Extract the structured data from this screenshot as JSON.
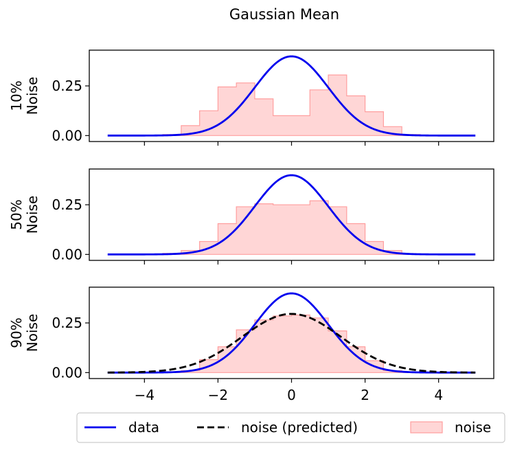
{
  "chart_data": {
    "type": "line",
    "title": "Gaussian Mean",
    "xlim": [
      -5.5,
      5.5
    ],
    "ylim": [
      -0.03,
      0.43
    ],
    "x_ticks": [
      -4,
      -2,
      0,
      2,
      4
    ],
    "x_tick_labels": [
      "−4",
      "−2",
      "0",
      "2",
      "4"
    ],
    "y_ticks": [
      0.0,
      0.25
    ],
    "y_tick_labels": [
      "0.00",
      "0.25"
    ],
    "bin_edges": [
      -3.5,
      -3.0,
      -2.5,
      -2.0,
      -1.5,
      -1.0,
      -0.5,
      0.0,
      0.5,
      1.0,
      1.5,
      2.0,
      2.5,
      3.0,
      3.5
    ],
    "panels": [
      {
        "ylabel_line1": "10%",
        "ylabel_line2": "Noise",
        "noise_hist": [
          0.005,
          0.05,
          0.125,
          0.245,
          0.265,
          0.185,
          0.1,
          0.1,
          0.23,
          0.305,
          0.2,
          0.12,
          0.045,
          0.005
        ],
        "data_curve": {
          "mean": 0,
          "std": 1,
          "x_range": [
            -5,
            5
          ]
        },
        "predicted_curve": null
      },
      {
        "ylabel_line1": "50%",
        "ylabel_line2": "Noise",
        "noise_hist": [
          0.005,
          0.02,
          0.065,
          0.155,
          0.24,
          0.255,
          0.25,
          0.25,
          0.27,
          0.24,
          0.155,
          0.065,
          0.02,
          0.0
        ],
        "data_curve": {
          "mean": 0,
          "std": 1,
          "x_range": [
            -5,
            5
          ]
        },
        "predicted_curve": null
      },
      {
        "ylabel_line1": "90%",
        "ylabel_line2": "Noise",
        "noise_hist": [
          0.0,
          0.01,
          0.065,
          0.13,
          0.215,
          0.265,
          0.285,
          0.29,
          0.275,
          0.21,
          0.13,
          0.06,
          0.01,
          0.0
        ],
        "data_curve": {
          "mean": 0,
          "std": 1,
          "x_range": [
            -5,
            5
          ]
        },
        "predicted_curve": {
          "mean": 0,
          "std": 1.35,
          "x_range": [
            -5,
            5
          ]
        }
      }
    ],
    "legend": {
      "placement": "bottom-center",
      "items": [
        {
          "label": "data",
          "style": "line",
          "color": "#0000ee"
        },
        {
          "label": "noise (predicted)",
          "style": "dashed",
          "color": "#000000"
        },
        {
          "label": "noise",
          "style": "patch",
          "color": "#ffd6d6",
          "edge_color": "#ff9e9e"
        }
      ]
    },
    "colors": {
      "data": "#0000ee",
      "predicted": "#000000",
      "hist_fill": "#ffd6d6",
      "hist_edge": "#ff9e9e"
    }
  }
}
